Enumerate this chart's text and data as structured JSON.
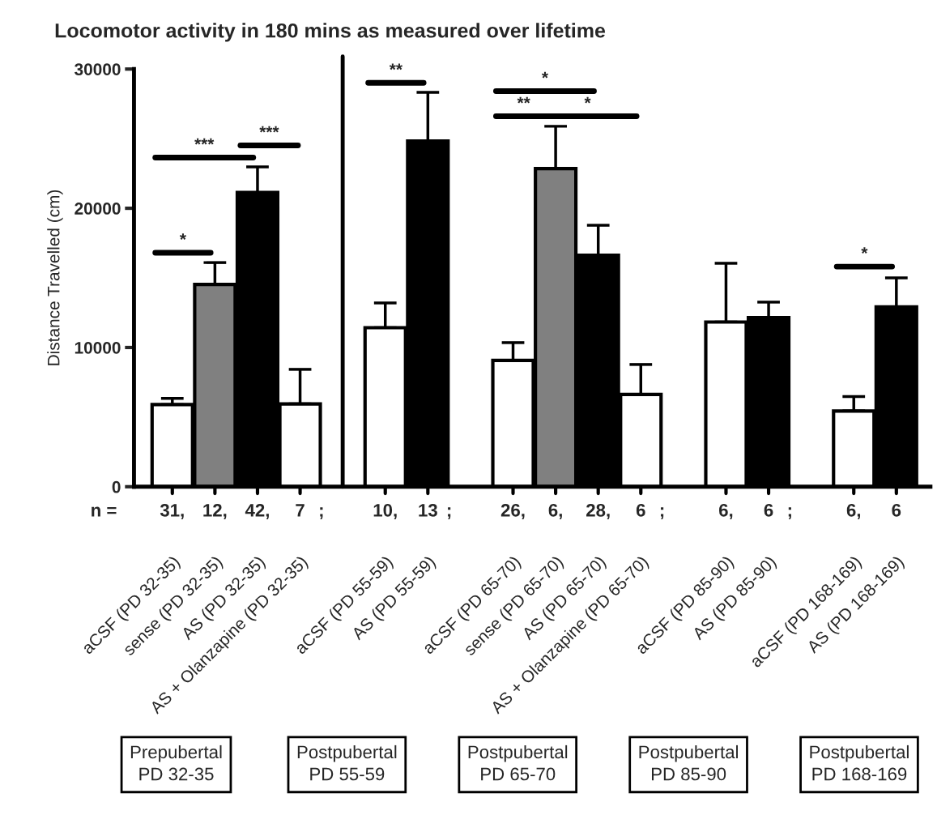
{
  "chart_data": {
    "type": "bar",
    "title": "Locomotor activity in 180 mins as measured over lifetime",
    "ylabel": "Distance Travelled (cm)",
    "categories": [
      "aCSF (PD 32-35)",
      "sense (PD 32-35)",
      "AS (PD 32-35)",
      "AS + Olanzapine (PD 32-35)",
      null,
      "aCSF (PD 55-59)",
      "AS (PD 55-59)",
      null,
      "aCSF (PD 65-70)",
      "sense (PD 65-70)",
      "AS (PD 65-70)",
      "AS + Olanzapine (PD 65-70)",
      null,
      "aCSF (PD 85-90)",
      "AS (PD 85-90)",
      null,
      "aCSF (PD 168-169)",
      "AS (PD 168-169)"
    ],
    "values": [
      5900,
      14530,
      21130,
      5950,
      null,
      11420,
      24830,
      null,
      9070,
      22850,
      16630,
      6630,
      null,
      11830,
      12150,
      null,
      5440,
      12910
    ],
    "errors": [
      [
        5900,
        6340
      ],
      [
        14530,
        16100
      ],
      [
        21130,
        22970
      ],
      [
        5950,
        8430
      ],
      null,
      [
        11420,
        13200
      ],
      [
        24830,
        28330
      ],
      null,
      [
        9070,
        10350
      ],
      [
        22850,
        25890
      ],
      [
        16630,
        18780
      ],
      [
        6630,
        8780
      ],
      null,
      [
        11830,
        16050
      ],
      [
        12150,
        13260
      ],
      null,
      [
        5440,
        6480
      ],
      [
        12910,
        15000
      ]
    ],
    "colors": [
      "#ffffff",
      "#808080",
      "#000000",
      "#ffffff",
      null,
      "#ffffff",
      "#000000",
      null,
      "#ffffff",
      "#808080",
      "#000000",
      "#ffffff",
      null,
      "#ffffff",
      "#000000",
      null,
      "#ffffff",
      "#000000"
    ],
    "ylim": [
      0,
      30000
    ],
    "yticks": [
      0,
      10000,
      20000,
      30000
    ],
    "annotations": [
      "n =",
      "31,",
      "12,",
      "42,",
      "7",
      "10,",
      "13",
      "26,",
      "6,",
      "28,",
      "6",
      "6,",
      "6",
      "6,",
      "6",
      ";",
      ";",
      ";",
      ";",
      "*",
      "***",
      "***",
      "**",
      "*",
      "**",
      "*",
      "*",
      "Prepubertal\nPD 32-35",
      "Postpubertal\nPD 55-59",
      "Postpubertal\nPD 65-70",
      "Postpubertal\nPD 85-90",
      "Postpubertal\nPD 168-169"
    ]
  }
}
